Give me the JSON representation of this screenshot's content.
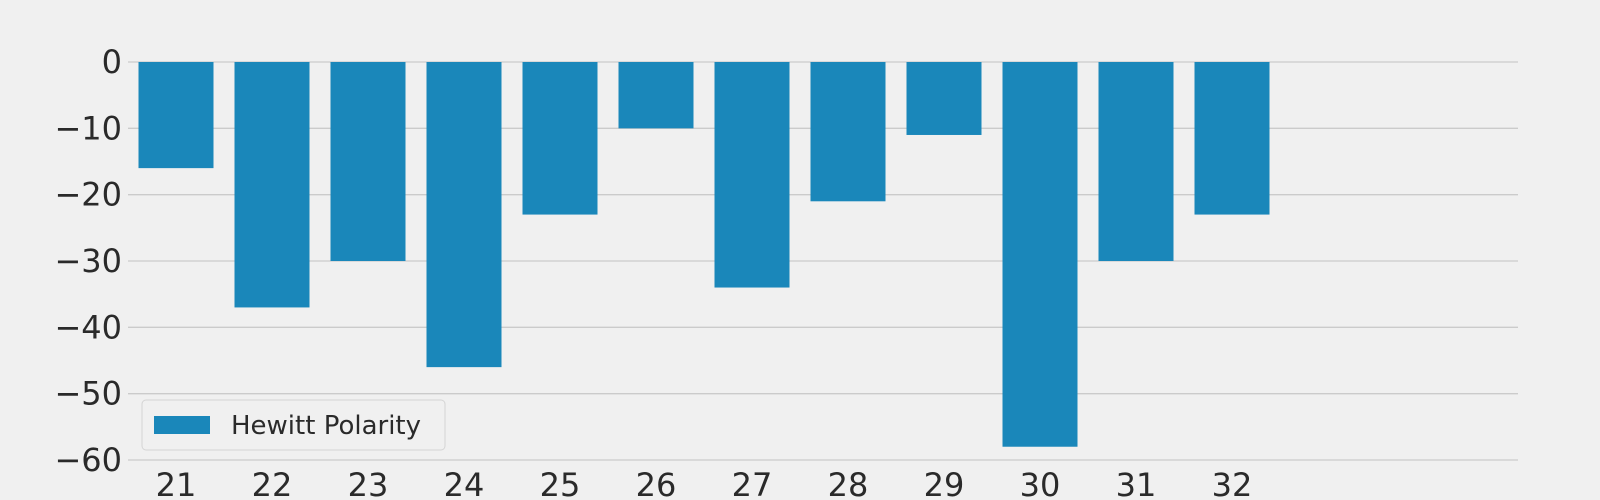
{
  "chart_data": {
    "type": "bar",
    "categories": [
      "21",
      "22",
      "23",
      "24",
      "25",
      "26",
      "27",
      "28",
      "29",
      "30",
      "31",
      "32"
    ],
    "series": [
      {
        "name": "Hewitt Polarity",
        "values": [
          -16,
          -37,
          -30,
          -46,
          -23,
          -10,
          -34,
          -21,
          -11,
          -58,
          -30,
          -23
        ]
      }
    ],
    "y_ticks": [
      "0",
      "−10",
      "−20",
      "−30",
      "−40",
      "−50",
      "−60"
    ],
    "y_tick_values": [
      0,
      -10,
      -20,
      -30,
      -40,
      -50,
      -60
    ],
    "ylim": [
      -60,
      0
    ],
    "grid": "horizontal",
    "legend": "lower-left",
    "colors": {
      "bar": "#1a87ba",
      "background": "#f0f0f0",
      "grid": "#cbcbcb"
    }
  }
}
